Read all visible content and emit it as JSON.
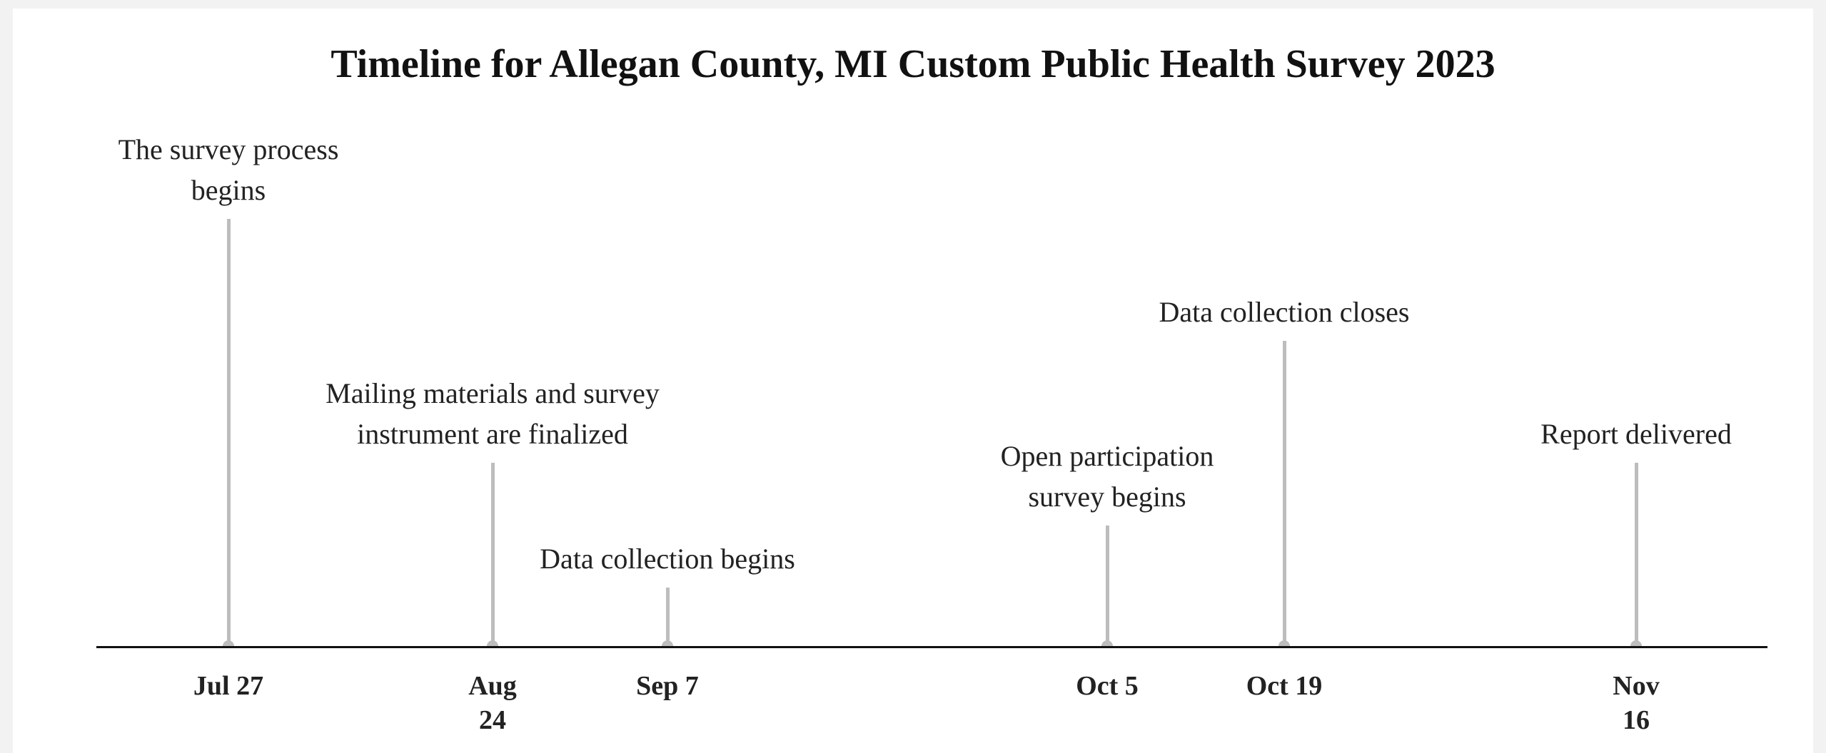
{
  "title": "Timeline for Allegan County, MI Custom Public Health Survey 2023",
  "events": [
    {
      "label": "The survey process begins",
      "date": "Jul 27"
    },
    {
      "label": "Mailing materials and survey instrument are finalized",
      "date": "Aug 24"
    },
    {
      "label": "Data collection begins",
      "date": "Sep 7"
    },
    {
      "label": "Open participation survey begins",
      "date": "Oct 5"
    },
    {
      "label": "Data collection closes",
      "date": "Oct 19"
    },
    {
      "label": "Report delivered",
      "date": "Nov 16"
    }
  ]
}
